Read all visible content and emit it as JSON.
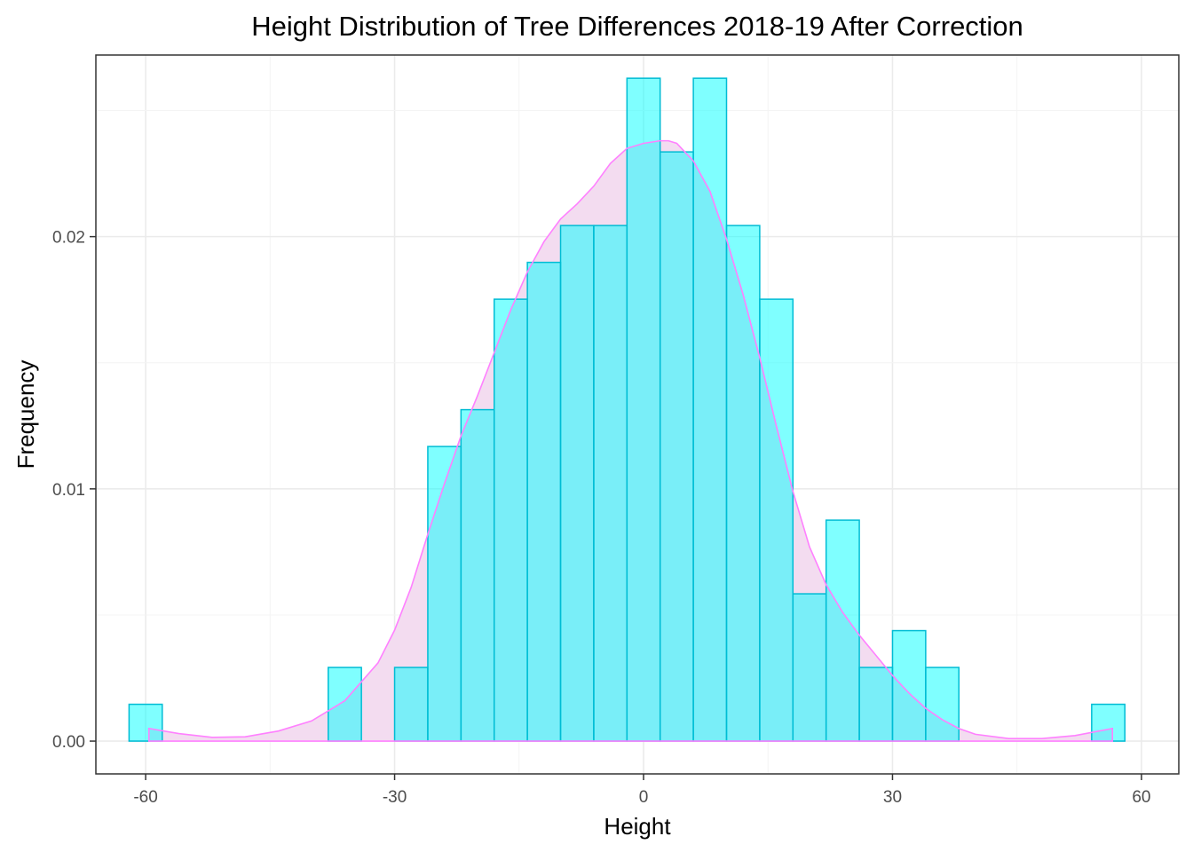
{
  "chart_data": {
    "type": "bar",
    "title": "Height Distribution of Tree Differences 2018-19 After Correction",
    "xlabel": "Height",
    "ylabel": "Frequency",
    "xlim": [
      -66,
      64.5
    ],
    "ylim": [
      -0.0013,
      0.0272
    ],
    "x_ticks": [
      -60,
      -30,
      0,
      30,
      60
    ],
    "x_tick_labels": [
      "-60",
      "-30",
      "0",
      "30",
      "60"
    ],
    "y_ticks": [
      0.0,
      0.01,
      0.02
    ],
    "y_tick_labels": [
      "0.00",
      "0.01",
      "0.02"
    ],
    "grid": true,
    "bin_width": 4,
    "histogram": {
      "bin_centers": [
        -60,
        -56,
        -52,
        -48,
        -44,
        -40,
        -36,
        -32,
        -28,
        -24,
        -20,
        -16,
        -12,
        -8,
        -4,
        0,
        4,
        8,
        12,
        16,
        20,
        24,
        28,
        32,
        36,
        40,
        44,
        48,
        52,
        56
      ],
      "values": [
        0.00146,
        0,
        0,
        0,
        0,
        0,
        0.00292,
        0,
        0.00292,
        0.01168,
        0.01314,
        0.01752,
        0.01898,
        0.02044,
        0.02044,
        0.02628,
        0.02336,
        0.02628,
        0.02044,
        0.01752,
        0.00584,
        0.00876,
        0.00292,
        0.00438,
        0.00292,
        0,
        0,
        0,
        0,
        0.00146
      ],
      "fill_color": "#00ffff",
      "border_color": "#00bcd4"
    },
    "density": {
      "x": [
        -59.6,
        -56,
        -52,
        -48,
        -44,
        -40,
        -36,
        -32,
        -30,
        -28,
        -26,
        -24,
        -22,
        -20,
        -18,
        -16,
        -14,
        -12,
        -10,
        -8,
        -6,
        -4,
        -2,
        0,
        2,
        3,
        4,
        6,
        8,
        10,
        12,
        14,
        16,
        18,
        20,
        22,
        24,
        26,
        28,
        30,
        32,
        34,
        36,
        38,
        40,
        44,
        48,
        52,
        56.5
      ],
      "y": [
        0.0005,
        0.0003,
        0.00015,
        0.00017,
        0.0004,
        0.0008,
        0.0016,
        0.0031,
        0.0044,
        0.0061,
        0.0082,
        0.0102,
        0.0121,
        0.0137,
        0.0154,
        0.0171,
        0.0186,
        0.0198,
        0.0207,
        0.0213,
        0.022,
        0.0229,
        0.0235,
        0.0237,
        0.0238,
        0.0238,
        0.0237,
        0.023,
        0.0218,
        0.0199,
        0.0177,
        0.0152,
        0.0125,
        0.0099,
        0.0077,
        0.0062,
        0.0051,
        0.0042,
        0.0034,
        0.0026,
        0.0019,
        0.0013,
        0.00085,
        0.0005,
        0.00027,
        0.0001,
        0.0001,
        0.00022,
        0.0005
      ],
      "line_color": "#ff80ff",
      "fill_color": "#f3dcf0"
    }
  }
}
